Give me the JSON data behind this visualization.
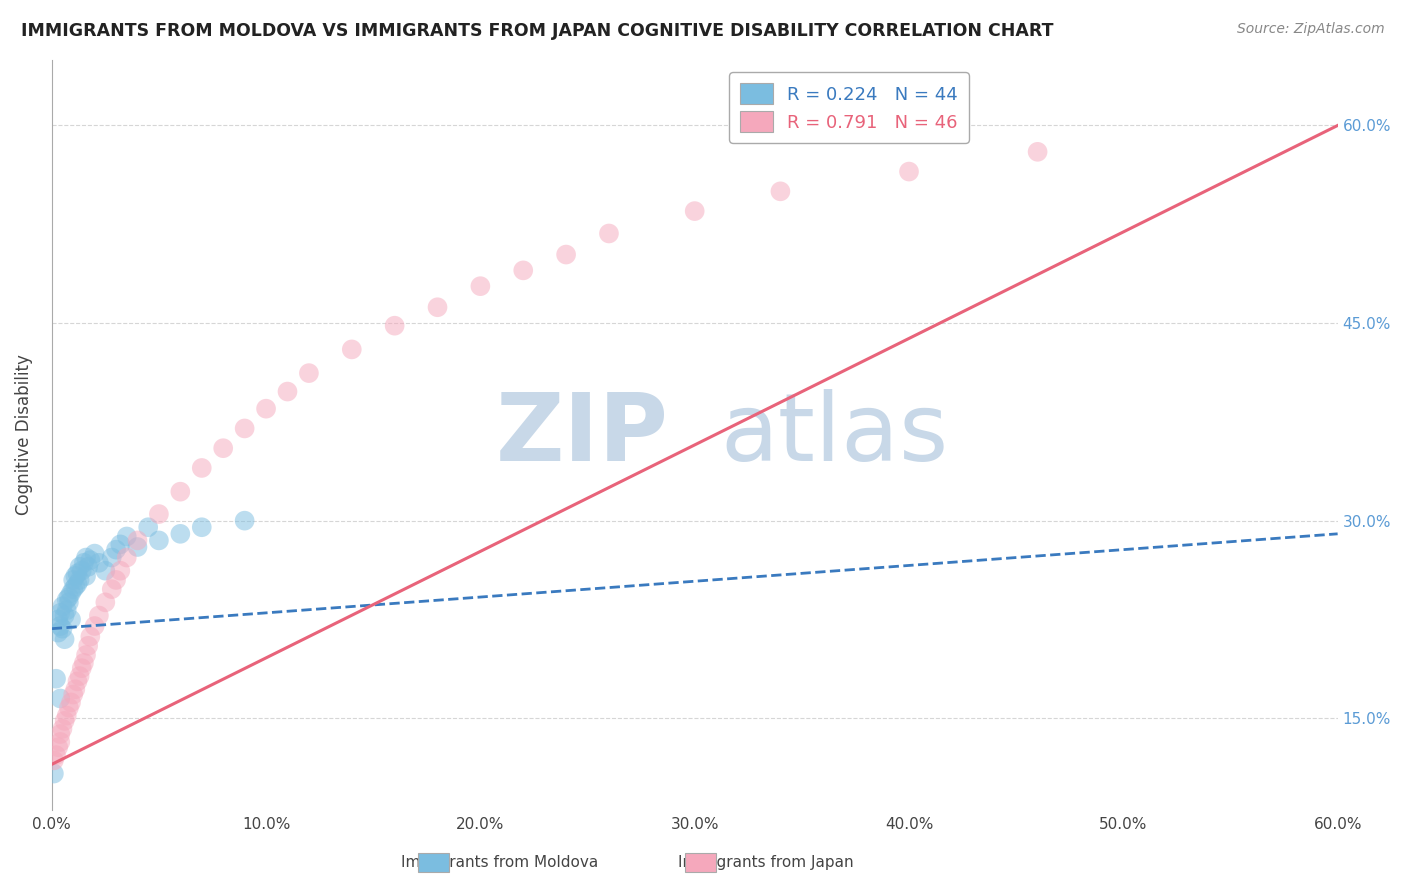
{
  "title": "IMMIGRANTS FROM MOLDOVA VS IMMIGRANTS FROM JAPAN COGNITIVE DISABILITY CORRELATION CHART",
  "source": "Source: ZipAtlas.com",
  "ylabel": "Cognitive Disability",
  "ylabel_right_ticks": [
    "15.0%",
    "30.0%",
    "45.0%",
    "60.0%"
  ],
  "ylabel_right_vals": [
    0.15,
    0.3,
    0.45,
    0.6
  ],
  "xlim": [
    0.0,
    0.6
  ],
  "ylim": [
    0.08,
    0.65
  ],
  "legend_moldova": "R = 0.224   N = 44",
  "legend_japan": "R = 0.791   N = 46",
  "moldova_color": "#7bbde0",
  "japan_color": "#f5a8bc",
  "moldova_line_color": "#3a7abf",
  "japan_line_color": "#e8637a",
  "moldova_scatter_x": [
    0.001,
    0.002,
    0.003,
    0.003,
    0.004,
    0.004,
    0.005,
    0.005,
    0.006,
    0.006,
    0.007,
    0.007,
    0.008,
    0.008,
    0.009,
    0.009,
    0.01,
    0.01,
    0.011,
    0.011,
    0.012,
    0.012,
    0.013,
    0.013,
    0.014,
    0.015,
    0.016,
    0.016,
    0.017,
    0.018,
    0.02,
    0.022,
    0.025,
    0.028,
    0.03,
    0.032,
    0.035,
    0.04,
    0.045,
    0.05,
    0.06,
    0.07,
    0.09,
    0.004
  ],
  "moldova_scatter_y": [
    0.108,
    0.18,
    0.215,
    0.225,
    0.22,
    0.23,
    0.218,
    0.235,
    0.21,
    0.228,
    0.24,
    0.232,
    0.238,
    0.242,
    0.225,
    0.245,
    0.248,
    0.255,
    0.25,
    0.258,
    0.252,
    0.26,
    0.255,
    0.265,
    0.262,
    0.268,
    0.272,
    0.258,
    0.265,
    0.27,
    0.275,
    0.268,
    0.262,
    0.272,
    0.278,
    0.282,
    0.288,
    0.28,
    0.295,
    0.285,
    0.29,
    0.295,
    0.3,
    0.165
  ],
  "japan_scatter_x": [
    0.001,
    0.002,
    0.003,
    0.004,
    0.004,
    0.005,
    0.006,
    0.007,
    0.008,
    0.009,
    0.01,
    0.011,
    0.012,
    0.013,
    0.014,
    0.015,
    0.016,
    0.017,
    0.018,
    0.02,
    0.022,
    0.025,
    0.028,
    0.03,
    0.032,
    0.035,
    0.04,
    0.05,
    0.06,
    0.07,
    0.08,
    0.09,
    0.1,
    0.11,
    0.12,
    0.14,
    0.16,
    0.18,
    0.2,
    0.22,
    0.24,
    0.26,
    0.3,
    0.34,
    0.4,
    0.46
  ],
  "japan_scatter_y": [
    0.118,
    0.122,
    0.128,
    0.132,
    0.138,
    0.142,
    0.148,
    0.152,
    0.158,
    0.162,
    0.168,
    0.172,
    0.178,
    0.182,
    0.188,
    0.192,
    0.198,
    0.205,
    0.212,
    0.22,
    0.228,
    0.238,
    0.248,
    0.255,
    0.262,
    0.272,
    0.285,
    0.305,
    0.322,
    0.34,
    0.355,
    0.37,
    0.385,
    0.398,
    0.412,
    0.43,
    0.448,
    0.462,
    0.478,
    0.49,
    0.502,
    0.518,
    0.535,
    0.55,
    0.565,
    0.58
  ],
  "moldova_trend": {
    "x_start": 0.0,
    "x_end": 0.6,
    "y_start": 0.218,
    "y_end": 0.29
  },
  "japan_trend": {
    "x_start": 0.0,
    "x_end": 0.6,
    "y_start": 0.115,
    "y_end": 0.6
  },
  "background_color": "#ffffff",
  "grid_color": "#cccccc",
  "watermark_zip": "ZIP",
  "watermark_atlas": "atlas",
  "watermark_color": "#c8d8e8"
}
